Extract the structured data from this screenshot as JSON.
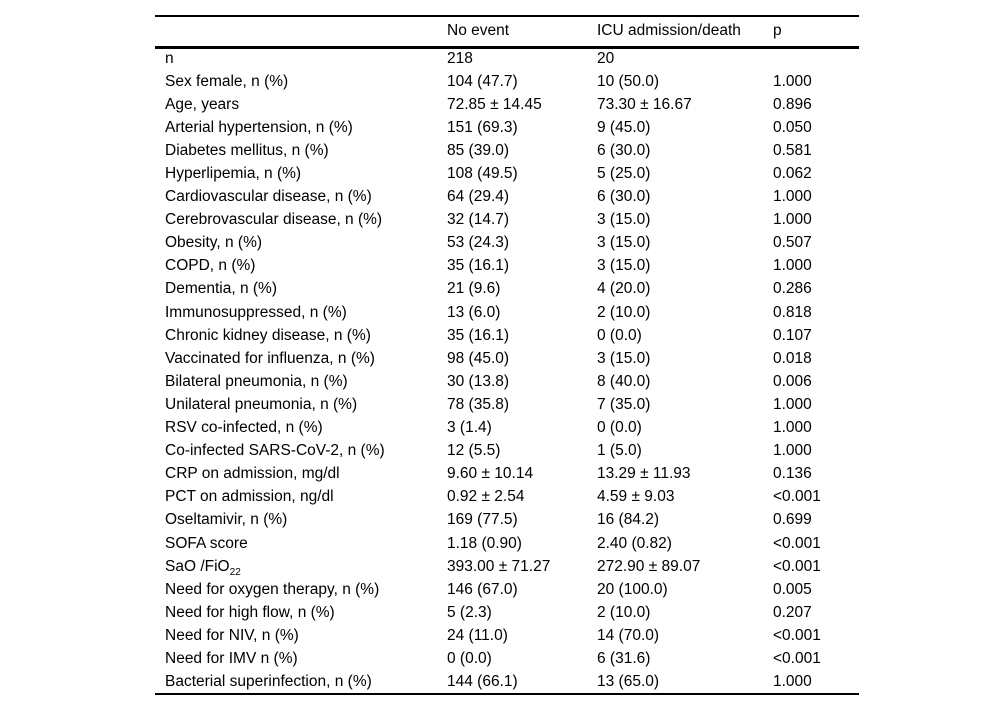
{
  "colors": {
    "text": "#000000",
    "background": "#ffffff",
    "rule": "#000000"
  },
  "table": {
    "columns": [
      "",
      "No event",
      "ICU admission/death",
      "p"
    ],
    "rows": [
      {
        "label": "n",
        "values": [
          "218",
          "20",
          ""
        ]
      },
      {
        "label": "Sex female, n (%)",
        "values": [
          "104 (47.7)",
          "10 (50.0)",
          "1.000"
        ]
      },
      {
        "label": "Age, years",
        "values": [
          "72.85 ± 14.45",
          "73.30 ± 16.67",
          "0.896"
        ]
      },
      {
        "label": "Arterial hypertension, n (%)",
        "values": [
          "151 (69.3)",
          "9 (45.0)",
          "0.050"
        ]
      },
      {
        "label": "Diabetes mellitus, n (%)",
        "values": [
          "85 (39.0)",
          "6 (30.0)",
          "0.581"
        ]
      },
      {
        "label": "Hyperlipemia, n (%)",
        "values": [
          "108 (49.5)",
          "5 (25.0)",
          "0.062"
        ]
      },
      {
        "label": "Cardiovascular disease, n (%)",
        "values": [
          "64 (29.4)",
          "6 (30.0)",
          "1.000"
        ]
      },
      {
        "label": "Cerebrovascular disease, n (%)",
        "values": [
          "32 (14.7)",
          "3 (15.0)",
          "1.000"
        ]
      },
      {
        "label": "Obesity, n (%)",
        "values": [
          "53 (24.3)",
          "3 (15.0)",
          "0.507"
        ]
      },
      {
        "label": "COPD, n (%)",
        "values": [
          "35 (16.1)",
          "3 (15.0)",
          "1.000"
        ]
      },
      {
        "label": "Dementia, n (%)",
        "values": [
          "21 (9.6)",
          "4 (20.0)",
          "0.286"
        ]
      },
      {
        "label": "Immunosuppressed, n (%)",
        "values": [
          "13 (6.0)",
          "2 (10.0)",
          "0.818"
        ]
      },
      {
        "label": "Chronic kidney disease, n (%)",
        "values": [
          "35 (16.1)",
          "0 (0.0)",
          "0.107"
        ]
      },
      {
        "label": "Vaccinated for influenza, n (%)",
        "values": [
          "98 (45.0)",
          "3 (15.0)",
          "0.018"
        ]
      },
      {
        "label": "Bilateral pneumonia, n (%)",
        "values": [
          "30 (13.8)",
          "8 (40.0)",
          "0.006"
        ]
      },
      {
        "label": "Unilateral pneumonia, n (%)",
        "values": [
          "78 (35.8)",
          "7 (35.0)",
          "1.000"
        ]
      },
      {
        "label": "RSV co-infected, n (%)",
        "values": [
          "3 (1.4)",
          "0 (0.0)",
          "1.000"
        ]
      },
      {
        "label": "Co-infected SARS-CoV-2, n (%)",
        "values": [
          "12 (5.5)",
          "1 (5.0)",
          "1.000"
        ]
      },
      {
        "label": "CRP on admission, mg/dl",
        "values": [
          "9.60 ± 10.14",
          "13.29 ± 11.93",
          "0.136"
        ]
      },
      {
        "label": "PCT on admission, ng/dl",
        "values": [
          "0.92 ± 2.54",
          "4.59 ± 9.03",
          "<0.001"
        ]
      },
      {
        "label": "Oseltamivir, n (%)",
        "values": [
          "169 (77.5)",
          "16 (84.2)",
          "0.699"
        ]
      },
      {
        "label": "SOFA score",
        "values": [
          "1.18 (0.90)",
          "2.40 (0.82)",
          "<0.001"
        ]
      },
      {
        "label": "SaO /FiO",
        "label_subscript": "22",
        "values": [
          "393.00 ± 71.27",
          "272.90 ± 89.07",
          "<0.001"
        ]
      },
      {
        "label": "Need for oxygen therapy, n (%)",
        "values": [
          "146 (67.0)",
          "20 (100.0)",
          "0.005"
        ]
      },
      {
        "label": "Need for high flow, n (%)",
        "values": [
          "5 (2.3)",
          "2 (10.0)",
          "0.207"
        ]
      },
      {
        "label": "Need for NIV, n (%)",
        "values": [
          "24 (11.0)",
          "14 (70.0)",
          "<0.001"
        ]
      },
      {
        "label": "Need for IMV n (%)",
        "values": [
          "0 (0.0)",
          "6 (31.6)",
          "<0.001"
        ]
      },
      {
        "label": "Bacterial superinfection, n (%)",
        "values": [
          "144 (66.1)",
          "13 (65.0)",
          "1.000"
        ]
      }
    ]
  }
}
